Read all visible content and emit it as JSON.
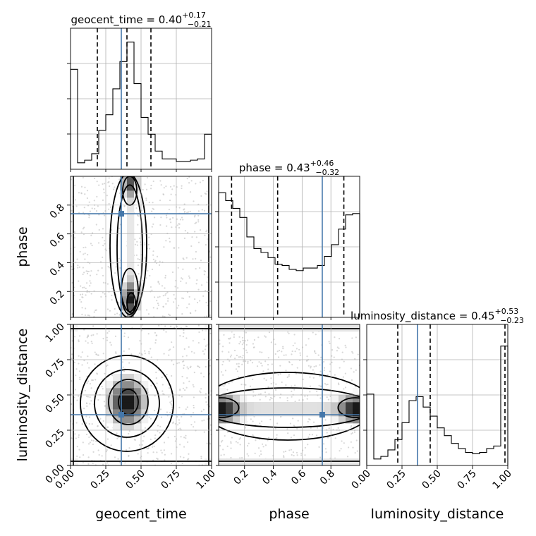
{
  "chart_data": {
    "type": "corner",
    "parameters": [
      "geocent_time",
      "phase",
      "luminosity_distance"
    ],
    "truth": [
      0.36,
      0.74,
      0.36
    ],
    "titles": [
      {
        "median": "0.40",
        "plus": "+0.17",
        "minus": "−0.21"
      },
      {
        "median": "0.43",
        "plus": "+0.46",
        "minus": "−0.32"
      },
      {
        "median": "0.45",
        "plus": "+0.53",
        "minus": "−0.23"
      }
    ],
    "quantile_lines": [
      [
        0.19,
        0.4,
        0.57
      ],
      [
        0.11,
        0.43,
        0.89
      ],
      [
        0.22,
        0.45,
        0.98
      ]
    ],
    "ranges": [
      [
        0,
        1
      ],
      [
        0.02,
        1.0
      ],
      [
        0,
        1
      ]
    ],
    "ticks": [
      [
        "0.00",
        "0.25",
        "0.50",
        "0.75",
        "1.00"
      ],
      [
        "0.2",
        "0.4",
        "0.6",
        "0.8"
      ],
      [
        "0.00",
        "0.25",
        "0.50",
        "0.75",
        "1.00"
      ]
    ],
    "hist_1d": [
      {
        "edges_from": 0.0,
        "edges_to": 1.0,
        "values": [
          0.77,
          0.05,
          0.07,
          0.12,
          0.3,
          0.42,
          0.62,
          0.83,
          0.98,
          0.66,
          0.4,
          0.27,
          0.14,
          0.08,
          0.08,
          0.06,
          0.06,
          0.07,
          0.08,
          0.27
        ]
      },
      {
        "edges_from": 0.02,
        "edges_to": 1.0,
        "values": [
          0.96,
          0.9,
          0.84,
          0.77,
          0.62,
          0.53,
          0.5,
          0.46,
          0.41,
          0.4,
          0.37,
          0.36,
          0.38,
          0.38,
          0.4,
          0.47,
          0.56,
          0.68,
          0.79,
          0.8
        ]
      },
      {
        "edges_from": 0.0,
        "edges_to": 1.0,
        "values": [
          0.55,
          0.05,
          0.07,
          0.12,
          0.2,
          0.33,
          0.5,
          0.53,
          0.45,
          0.38,
          0.29,
          0.23,
          0.17,
          0.13,
          0.1,
          0.09,
          0.1,
          0.13,
          0.15,
          0.92
        ]
      }
    ],
    "grid": true
  }
}
